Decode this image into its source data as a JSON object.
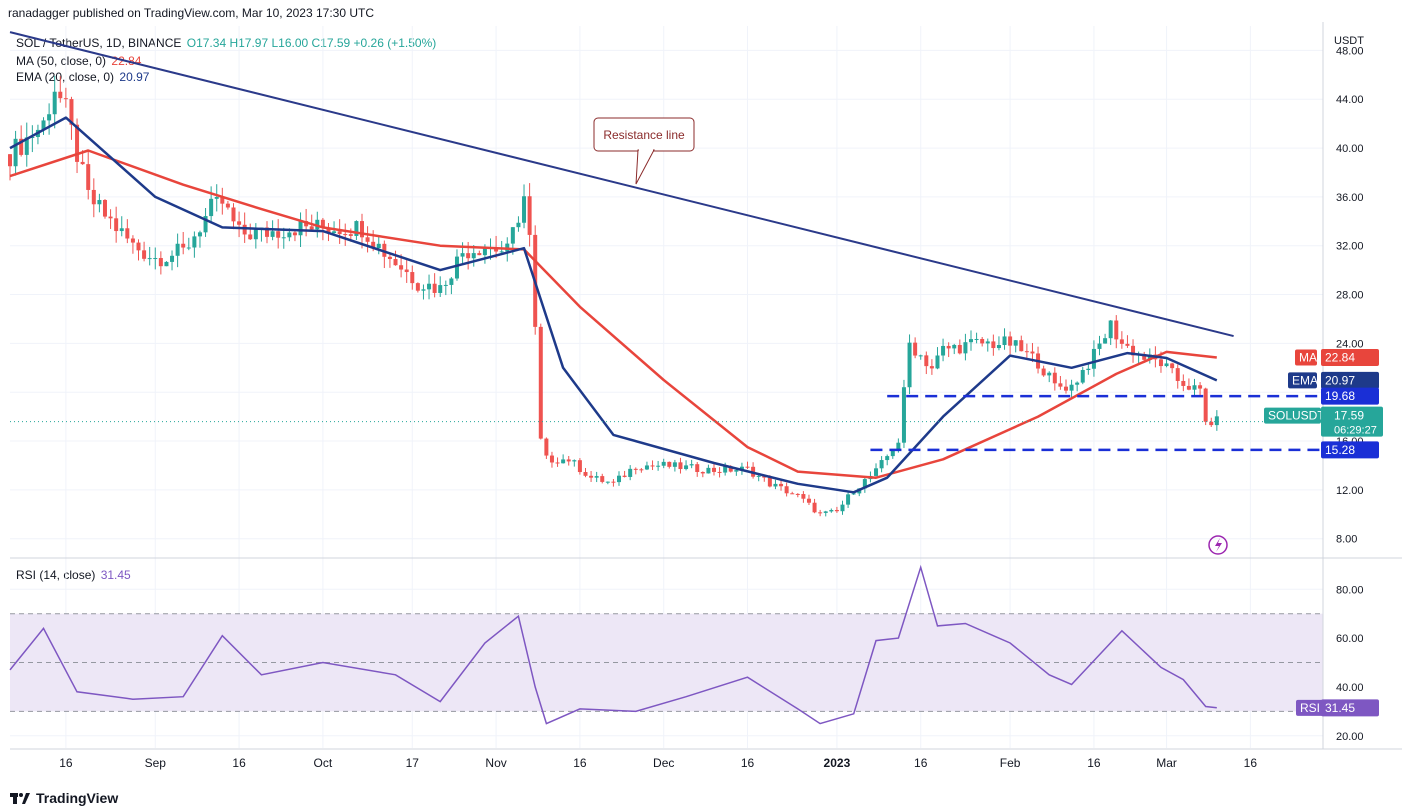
{
  "header": {
    "publisher_line": "ranadagger published on TradingView.com, Mar 10, 2023 17:30 UTC"
  },
  "legend": {
    "symbol": "SOL / TetherUS, 1D, BINANCE",
    "ohlc": "O17.34 H17.97 L16.00 C17.59 +0.26 (+1.50%)",
    "ma_label": "MA (50, close, 0)",
    "ma_value": "22.84",
    "ema_label": "EMA (20, close, 0)",
    "ema_value": "20.97",
    "rsi_label": "RSI (14, close)",
    "rsi_value": "31.45"
  },
  "colors": {
    "up": "#26a69a",
    "down": "#ef5350",
    "ma": "#e8453c",
    "ema": "#1e3a8a",
    "trend": "#2b3a8a",
    "levels": "#1a2fd6",
    "rsi": "#7e57c2",
    "rsi_band": "#ede7f6"
  },
  "axis": {
    "currency": "USDT",
    "price_ticks": [
      "48.00",
      "44.00",
      "40.00",
      "36.00",
      "32.00",
      "28.00",
      "24.00",
      "20.00",
      "16.00",
      "12.00",
      "8.00"
    ],
    "rsi_ticks": [
      "80.00",
      "60.00",
      "40.00",
      "20.00"
    ],
    "time_labels": [
      "16",
      "Sep",
      "16",
      "Oct",
      "17",
      "Nov",
      "16",
      "Dec",
      "16",
      "2023",
      "16",
      "Feb",
      "16",
      "Mar",
      "16"
    ]
  },
  "annotations": {
    "resistance": "Resistance line"
  },
  "badges": {
    "ma_name": "MA",
    "ma_value": "22.84",
    "ema_name": "EMA",
    "ema_value": "20.97",
    "level_upper": "19.68",
    "symbol": "SOLUSDT",
    "price": "17.59",
    "countdown": "06:29:27",
    "level_lower": "15.28",
    "rsi_name": "RSI",
    "rsi_value": "31.45"
  },
  "footer": {
    "brand": "TradingView"
  },
  "chart_data": [
    {
      "type": "candlestick",
      "title": "SOL / TetherUS, 1D, BINANCE",
      "ylabel": "USDT",
      "ylim": [
        6.5,
        50
      ],
      "x_range": [
        "2022-08-06",
        "2023-03-29"
      ],
      "price_keypoints": [
        [
          "2022-08-06",
          39.5
        ],
        [
          "2022-08-12",
          42
        ],
        [
          "2022-08-14",
          45
        ],
        [
          "2022-08-16",
          43
        ],
        [
          "2022-08-20",
          36
        ],
        [
          "2022-08-24",
          34
        ],
        [
          "2022-08-28",
          32
        ],
        [
          "2022-09-01",
          31
        ],
        [
          "2022-09-06",
          31.5
        ],
        [
          "2022-09-11",
          35
        ],
        [
          "2022-09-13",
          35.5
        ],
        [
          "2022-09-16",
          33
        ],
        [
          "2022-09-20",
          33
        ],
        [
          "2022-09-26",
          33.5
        ],
        [
          "2022-10-01",
          33.5
        ],
        [
          "2022-10-08",
          33.5
        ],
        [
          "2022-10-12",
          31.5
        ],
        [
          "2022-10-18",
          29
        ],
        [
          "2022-10-22",
          28.5
        ],
        [
          "2022-10-26",
          31.5
        ],
        [
          "2022-10-30",
          32
        ],
        [
          "2022-11-03",
          31.5
        ],
        [
          "2022-11-06",
          36
        ],
        [
          "2022-11-07",
          32.5
        ],
        [
          "2022-11-08",
          25
        ],
        [
          "2022-11-09",
          16
        ],
        [
          "2022-11-10",
          14.5
        ],
        [
          "2022-11-14",
          14.5
        ],
        [
          "2022-11-18",
          13
        ],
        [
          "2022-11-22",
          12.5
        ],
        [
          "2022-11-26",
          14
        ],
        [
          "2022-12-01",
          14
        ],
        [
          "2022-12-10",
          13.6
        ],
        [
          "2022-12-16",
          13.7
        ],
        [
          "2022-12-20",
          12.5
        ],
        [
          "2022-12-25",
          11.5
        ],
        [
          "2022-12-29",
          10
        ],
        [
          "2023-01-01",
          10.2
        ],
        [
          "2023-01-04",
          12
        ],
        [
          "2023-01-08",
          13.5
        ],
        [
          "2023-01-12",
          16
        ],
        [
          "2023-01-14",
          24
        ],
        [
          "2023-01-18",
          22
        ],
        [
          "2023-01-20",
          23.5
        ],
        [
          "2023-01-26",
          24
        ],
        [
          "2023-02-01",
          24
        ],
        [
          "2023-02-06",
          22.5
        ],
        [
          "2023-02-09",
          20.5
        ],
        [
          "2023-02-12",
          20.5
        ],
        [
          "2023-02-16",
          23
        ],
        [
          "2023-02-19",
          25.5
        ],
        [
          "2023-02-21",
          24
        ],
        [
          "2023-02-25",
          22.8
        ],
        [
          "2023-02-28",
          22.4
        ],
        [
          "2023-03-03",
          21
        ],
        [
          "2023-03-07",
          20
        ],
        [
          "2023-03-08",
          17.5
        ],
        [
          "2023-03-10",
          17.59
        ]
      ],
      "moving_averages": [
        {
          "name": "MA (50, close, 0)",
          "last": 22.84,
          "points": [
            [
              "2022-08-06",
              37.7
            ],
            [
              "2022-08-20",
              39.8
            ],
            [
              "2022-09-06",
              37
            ],
            [
              "2022-09-20",
              35
            ],
            [
              "2022-10-01",
              33.5
            ],
            [
              "2022-10-22",
              32
            ],
            [
              "2022-11-06",
              31.7
            ],
            [
              "2022-11-16",
              27
            ],
            [
              "2022-12-01",
              21
            ],
            [
              "2022-12-16",
              15.5
            ],
            [
              "2022-12-25",
              13.5
            ],
            [
              "2023-01-08",
              13
            ],
            [
              "2023-01-20",
              14.5
            ],
            [
              "2023-02-06",
              18
            ],
            [
              "2023-02-20",
              21.5
            ],
            [
              "2023-03-01",
              23.3
            ],
            [
              "2023-03-10",
              22.84
            ]
          ]
        },
        {
          "name": "EMA (20, close, 0)",
          "last": 20.97,
          "points": [
            [
              "2022-08-06",
              40
            ],
            [
              "2022-08-16",
              42.5
            ],
            [
              "2022-09-01",
              36
            ],
            [
              "2022-09-13",
              33.5
            ],
            [
              "2022-10-01",
              33.2
            ],
            [
              "2022-10-22",
              30
            ],
            [
              "2022-11-06",
              31.8
            ],
            [
              "2022-11-13",
              22
            ],
            [
              "2022-11-22",
              16.5
            ],
            [
              "2022-12-10",
              14.2
            ],
            [
              "2022-12-25",
              12.5
            ],
            [
              "2023-01-04",
              11.8
            ],
            [
              "2023-01-10",
              13
            ],
            [
              "2023-01-20",
              18
            ],
            [
              "2023-02-01",
              23
            ],
            [
              "2023-02-12",
              22
            ],
            [
              "2023-02-22",
              23.2
            ],
            [
              "2023-03-01",
              22.8
            ],
            [
              "2023-03-10",
              20.97
            ]
          ]
        }
      ],
      "trend_lines": [
        {
          "name": "Resistance line",
          "from": [
            "2022-08-06",
            49.5
          ],
          "to": [
            "2023-03-13",
            24.6
          ]
        },
        {
          "name": "19.68",
          "value": 19.68,
          "from": "2023-01-10",
          "to": "2023-03-13"
        },
        {
          "name": "15.28",
          "value": 15.28,
          "from": "2023-01-07",
          "to": "2023-03-13"
        }
      ]
    },
    {
      "type": "line",
      "title": "RSI (14, close)",
      "ylim": [
        15,
        92
      ],
      "bands": [
        30,
        70
      ],
      "last": 31.45,
      "points": [
        [
          "2022-08-06",
          47
        ],
        [
          "2022-08-12",
          64
        ],
        [
          "2022-08-18",
          38
        ],
        [
          "2022-08-28",
          35
        ],
        [
          "2022-09-06",
          36
        ],
        [
          "2022-09-13",
          61
        ],
        [
          "2022-09-20",
          45
        ],
        [
          "2022-10-01",
          50
        ],
        [
          "2022-10-14",
          45
        ],
        [
          "2022-10-22",
          34
        ],
        [
          "2022-10-30",
          58
        ],
        [
          "2022-11-05",
          69
        ],
        [
          "2022-11-08",
          40
        ],
        [
          "2022-11-10",
          25
        ],
        [
          "2022-11-16",
          31
        ],
        [
          "2022-11-26",
          30
        ],
        [
          "2022-12-05",
          36
        ],
        [
          "2022-12-16",
          44
        ],
        [
          "2022-12-25",
          31
        ],
        [
          "2022-12-29",
          25
        ],
        [
          "2023-01-04",
          29
        ],
        [
          "2023-01-08",
          59
        ],
        [
          "2023-01-12",
          60
        ],
        [
          "2023-01-16",
          89
        ],
        [
          "2023-01-19",
          65
        ],
        [
          "2023-01-24",
          66
        ],
        [
          "2023-02-01",
          58
        ],
        [
          "2023-02-08",
          45
        ],
        [
          "2023-02-12",
          41
        ],
        [
          "2023-02-21",
          63
        ],
        [
          "2023-02-28",
          48
        ],
        [
          "2023-03-04",
          43
        ],
        [
          "2023-03-08",
          32
        ],
        [
          "2023-03-10",
          31.45
        ]
      ]
    }
  ]
}
